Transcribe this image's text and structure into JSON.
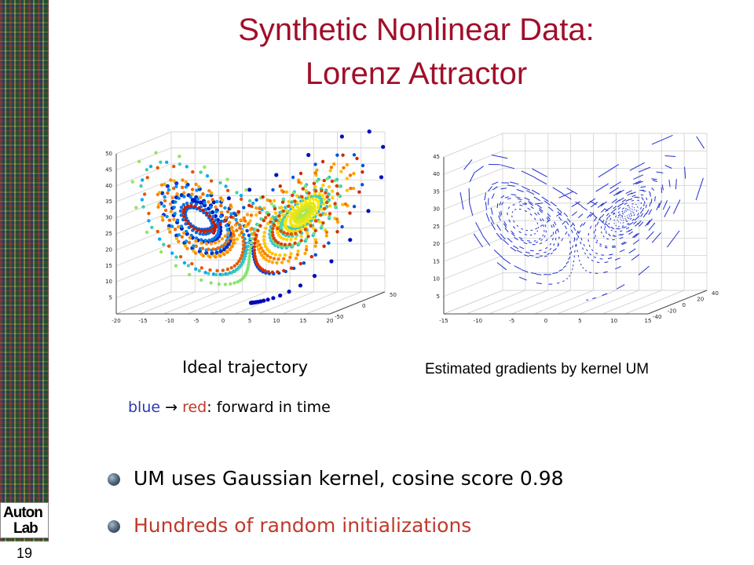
{
  "slide": {
    "title_line1": "Synthetic Nonlinear Data:",
    "title_line2": "Lorenz Attractor",
    "page_number": "19",
    "logo_top": "Auton",
    "logo_bottom": "Lab"
  },
  "figures": {
    "left": {
      "caption": "Ideal trajectory",
      "legend_blue": "blue",
      "legend_arrow": "→",
      "legend_red": "red",
      "legend_rest": ": forward in time",
      "z_ticks": [
        "5",
        "10",
        "15",
        "20",
        "25",
        "30",
        "35",
        "40",
        "45",
        "50"
      ],
      "x_ticks": [
        "-20",
        "-15",
        "-10",
        "-5",
        "0",
        "5",
        "10",
        "15",
        "20"
      ],
      "y_ticks": [
        "-50",
        "0",
        "50"
      ]
    },
    "right": {
      "caption": "Estimated gradients by kernel UM",
      "z_ticks": [
        "5",
        "10",
        "15",
        "20",
        "25",
        "30",
        "35",
        "40",
        "45"
      ],
      "x_ticks": [
        "-15",
        "-10",
        "-5",
        "0",
        "5",
        "10",
        "15"
      ],
      "y_ticks": [
        "-40",
        "-20",
        "0",
        "20",
        "40"
      ]
    }
  },
  "bullets": [
    {
      "text": "UM uses Gaussian kernel, cosine score 0.98",
      "color": "#000000"
    },
    {
      "text": "Hundreds of random initializations",
      "color": "#c0392b"
    }
  ],
  "colors": {
    "title": "#a00f2a",
    "blue_word": "#2a3bb0",
    "red_word": "#c0392b",
    "gradient_lines": "#1f2fd0"
  }
}
